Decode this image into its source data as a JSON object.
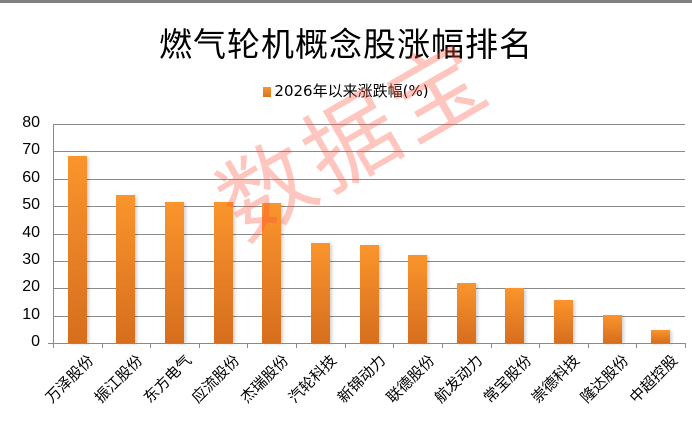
{
  "title": "燃气轮机概念股涨幅排名",
  "legend": {
    "label": "2026年以来涨跌幅(%)",
    "color": "#f7962f"
  },
  "watermark": "数据宝",
  "y_ticks": [
    "80",
    "70",
    "60",
    "50",
    "40",
    "30",
    "20",
    "10",
    "0"
  ],
  "chart_data": {
    "type": "bar",
    "title": "燃气轮机概念股涨幅排名",
    "xlabel": "",
    "ylabel": "",
    "ylim": [
      0,
      80
    ],
    "y_ticks": [
      0,
      10,
      20,
      30,
      40,
      50,
      60,
      70,
      80
    ],
    "grid": true,
    "legend_position": "top",
    "categories": [
      "万泽股份",
      "振江股份",
      "东方电气",
      "应流股份",
      "杰瑞股份",
      "汽轮科技",
      "新锦动力",
      "联德股份",
      "航发动力",
      "常宝股份",
      "崇德科技",
      "隆达股份",
      "中超控股"
    ],
    "series": [
      {
        "name": "2026年以来涨跌幅(%)",
        "color": "#f7962f",
        "values": [
          68.3,
          54.0,
          51.5,
          51.5,
          51.1,
          36.5,
          35.8,
          32.1,
          21.9,
          20.1,
          15.7,
          10.2,
          4.7
        ]
      }
    ]
  }
}
